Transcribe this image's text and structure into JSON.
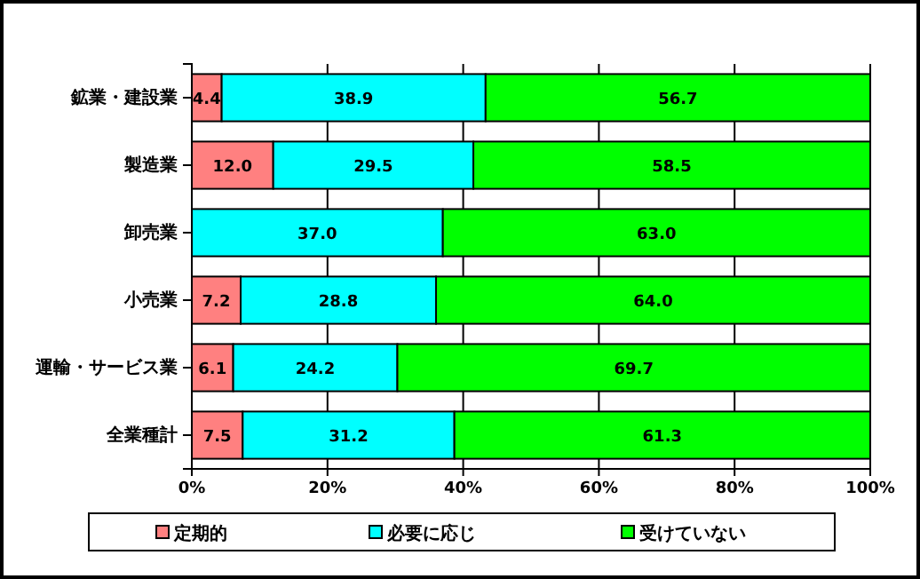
{
  "chart_data": {
    "type": "bar",
    "orientation": "horizontal",
    "stacked": true,
    "categories": [
      "鉱業・建設業",
      "製造業",
      "卸売業",
      "小売業",
      "運輸・サービス業",
      "全業種計"
    ],
    "series": [
      {
        "name": "定期的",
        "color": "#ff8080",
        "values": [
          4.4,
          12.0,
          0,
          7.2,
          6.1,
          7.5
        ],
        "value_labels": [
          "4.4",
          "12.0",
          null,
          "7.2",
          "6.1",
          "7.5"
        ]
      },
      {
        "name": "必要に応じ",
        "color": "#00ffff",
        "values": [
          38.9,
          29.5,
          37.0,
          28.8,
          24.2,
          31.2
        ],
        "value_labels": [
          "38.9",
          "29.5",
          "37.0",
          "28.8",
          "24.2",
          "31.2"
        ]
      },
      {
        "name": "受けていない",
        "color": "#00ff00",
        "values": [
          56.7,
          58.5,
          63.0,
          64.0,
          69.7,
          61.3
        ],
        "value_labels": [
          "56.7",
          "58.5",
          "63.0",
          "64.0",
          "69.7",
          "61.3"
        ]
      }
    ],
    "xlim": [
      0,
      100
    ],
    "xticks": [
      {
        "value": 0,
        "label": "0%"
      },
      {
        "value": 20,
        "label": "20%"
      },
      {
        "value": 40,
        "label": "40%"
      },
      {
        "value": 60,
        "label": "60%"
      },
      {
        "value": 80,
        "label": "80%"
      },
      {
        "value": 100,
        "label": "100%"
      }
    ],
    "grid": "x",
    "legend": "bottom"
  }
}
